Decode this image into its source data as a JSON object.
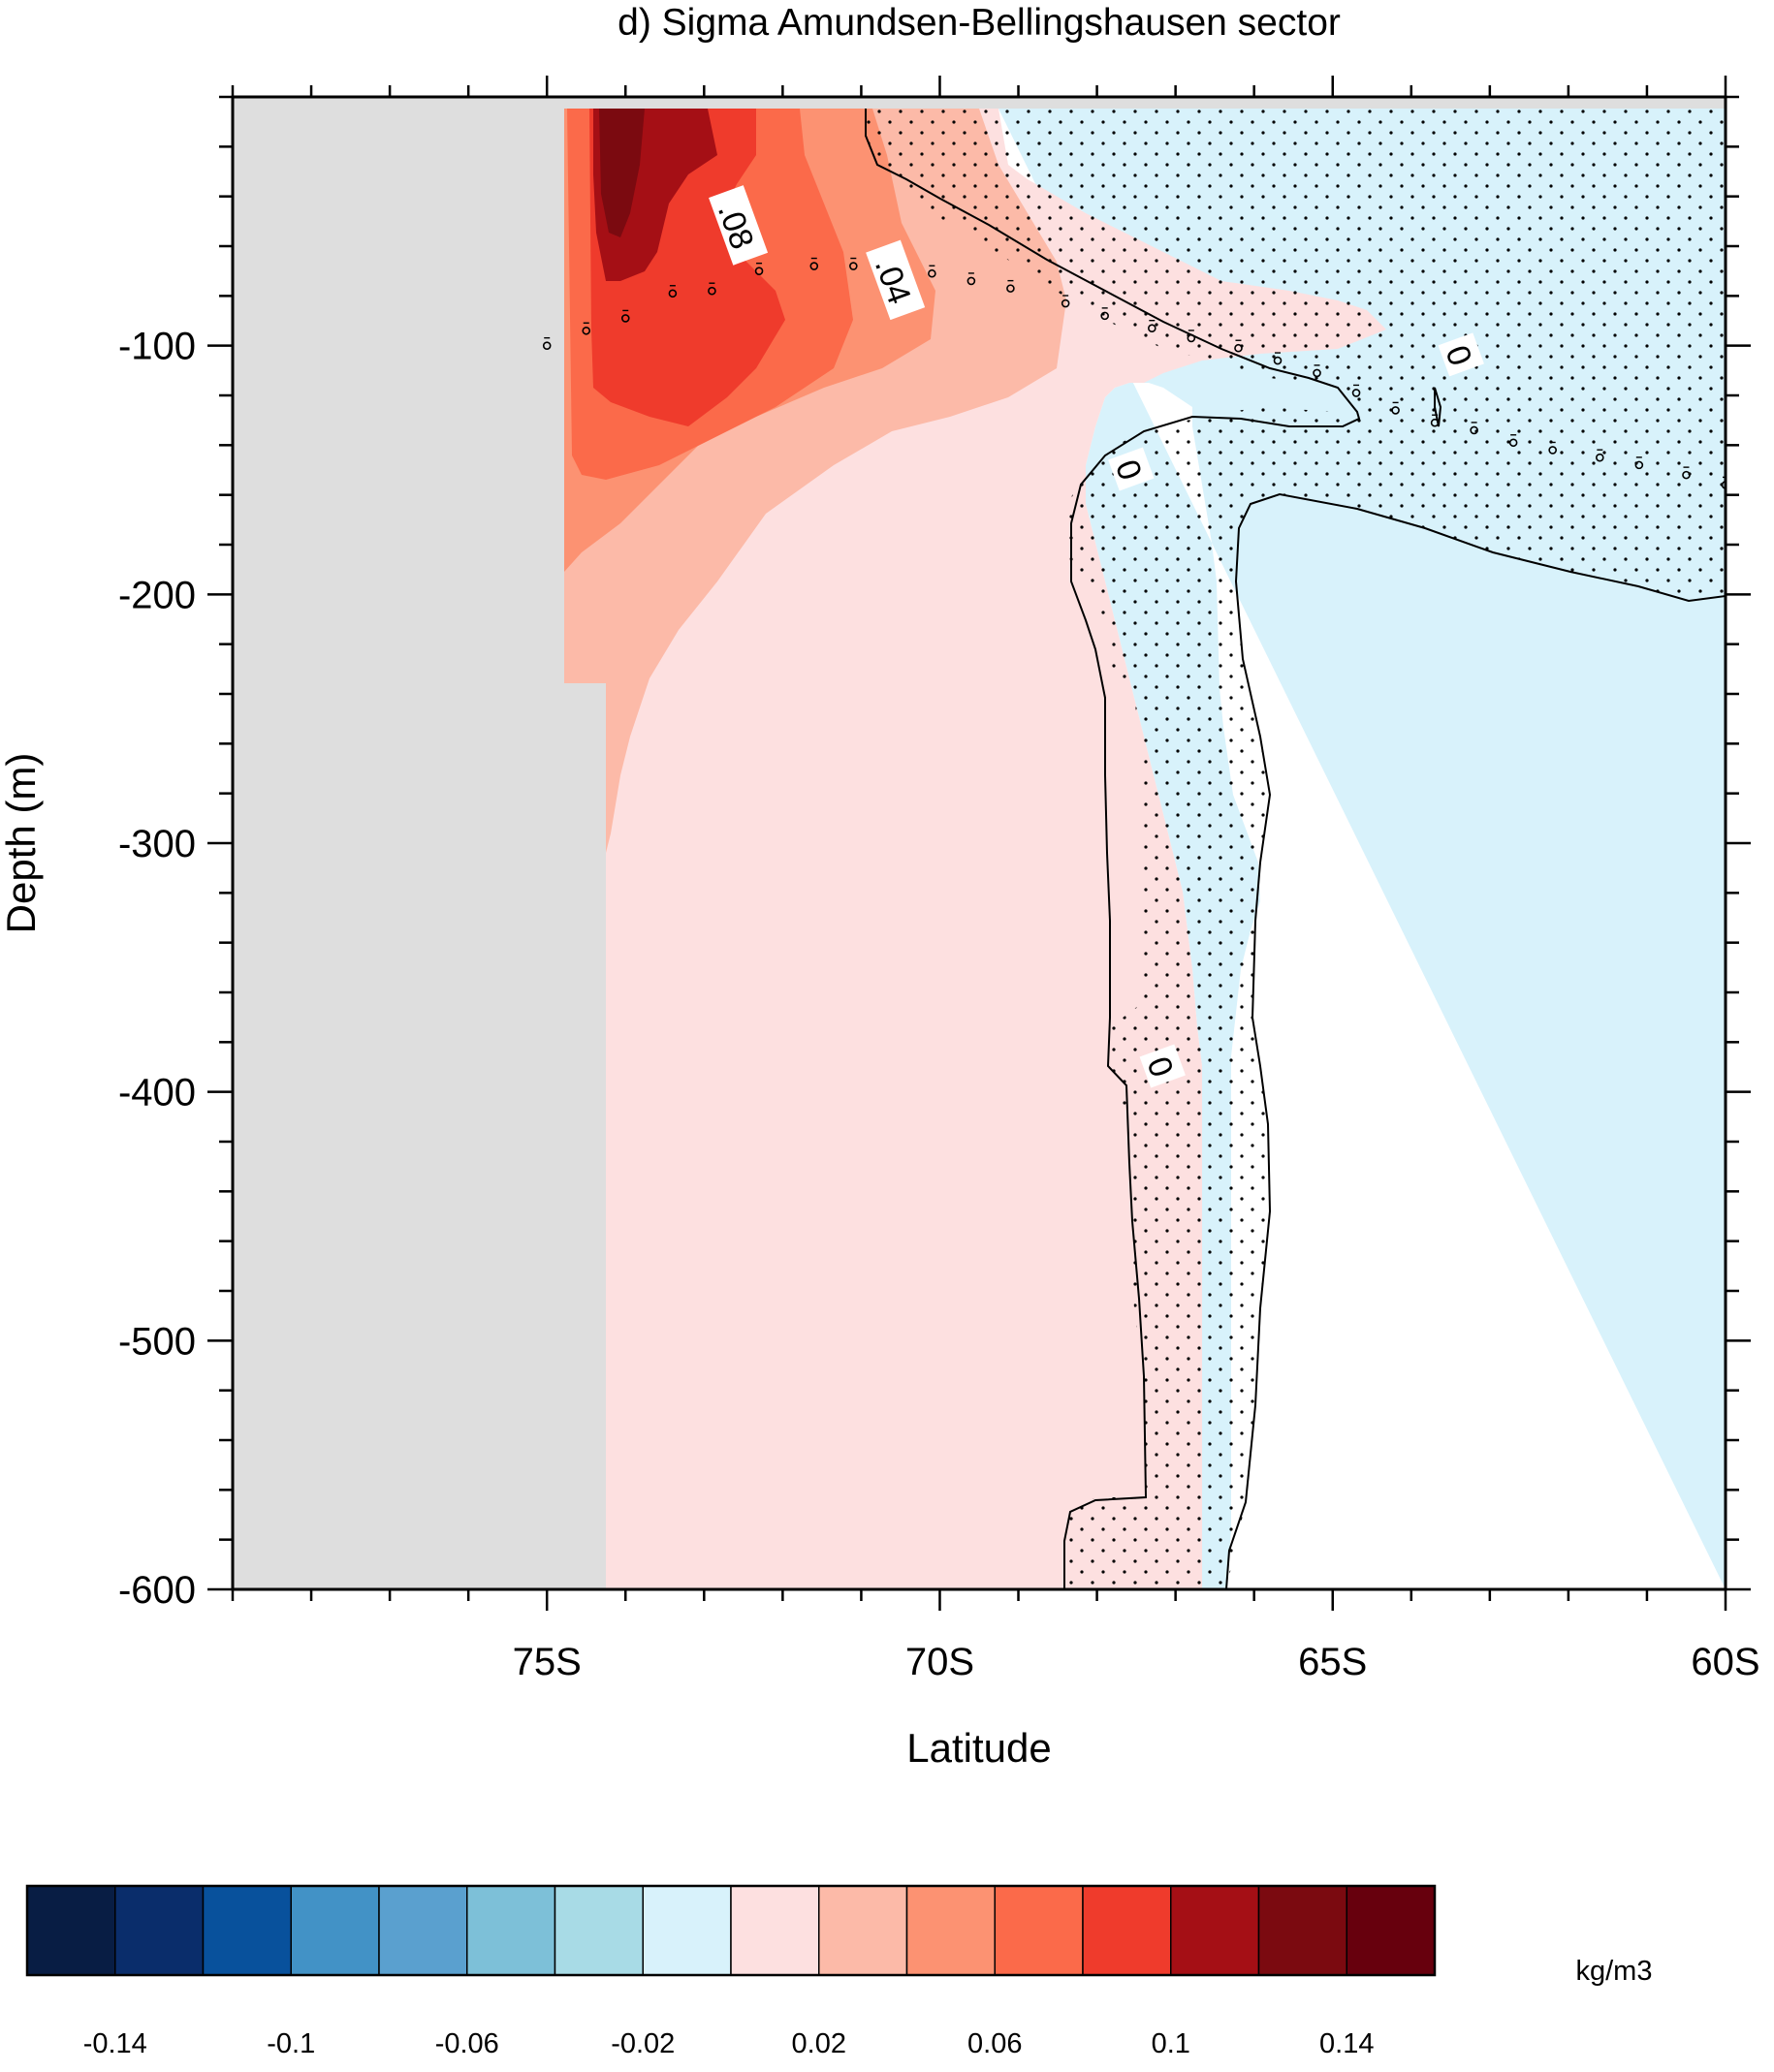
{
  "chart_data": {
    "type": "heatmap",
    "title": "d) Sigma Amundsen-Bellingshausen sector",
    "xlabel": "Latitude",
    "ylabel": "Depth (m)",
    "units": "kg/m3",
    "x_unit": "degrees latitude",
    "xlim": [
      -79,
      -60
    ],
    "ylim": [
      -600,
      0
    ],
    "x_ticks": [
      {
        "value": -75,
        "label": "75S"
      },
      {
        "value": -70,
        "label": "70S"
      },
      {
        "value": -65,
        "label": "65S"
      },
      {
        "value": -60,
        "label": "60S"
      }
    ],
    "y_ticks": [
      {
        "value": -100,
        "label": "-100"
      },
      {
        "value": -200,
        "label": "-200"
      },
      {
        "value": -300,
        "label": "-300"
      },
      {
        "value": -400,
        "label": "-400"
      },
      {
        "value": -500,
        "label": "-500"
      },
      {
        "value": -600,
        "label": "-600"
      }
    ],
    "contour_labels": [
      {
        "text": ".08",
        "lat": -72.6,
        "depth": -52
      },
      {
        "text": ".04",
        "lat": -70.6,
        "depth": -74
      },
      {
        "text": "0",
        "lat": -63.4,
        "depth": -104
      },
      {
        "text": "0",
        "lat": -67.6,
        "depth": -150
      },
      {
        "text": "0",
        "lat": -67.2,
        "depth": -390
      }
    ],
    "colorbar": {
      "colors": [
        "#081d44",
        "#0a2d6b",
        "#08519c",
        "#4292c6",
        "#5aa0cf",
        "#7dc0d8",
        "#a8dbe6",
        "#d8f2fb",
        "#fde0e0",
        "#fcbaa8",
        "#fc9272",
        "#fb6a4a",
        "#ef3b2c",
        "#a50f15",
        "#7b0a10",
        "#67000d"
      ],
      "tick_labels": [
        "-0.14",
        "-0.1",
        "-0.06",
        "-0.02",
        "0.02",
        "0.06",
        "0.1",
        "0.14"
      ]
    },
    "regions": [
      {
        "name": "land-mask",
        "color": "#dedede"
      },
      {
        "name": "level-0.00-0.02",
        "color": "#fde0e0"
      },
      {
        "name": "level-0.02-0.04",
        "color": "#fcbaa8"
      },
      {
        "name": "level-0.04-0.06",
        "color": "#fc9272"
      },
      {
        "name": "level-0.06-0.08",
        "color": "#fb6a4a"
      },
      {
        "name": "level-0.08-0.10",
        "color": "#ef3b2c"
      },
      {
        "name": "level-0.10-0.12",
        "color": "#a50f15"
      },
      {
        "name": "level-0.12-0.14",
        "color": "#7b0a10"
      },
      {
        "name": "level-minus-0.02-0.00",
        "color": "#d8f2fb"
      }
    ],
    "mixed_layer_points": [
      [
        -75.0,
        -100
      ],
      [
        -74.5,
        -94
      ],
      [
        -74.0,
        -89
      ],
      [
        -73.4,
        -79
      ],
      [
        -72.9,
        -78
      ],
      [
        -72.3,
        -70
      ],
      [
        -71.6,
        -68
      ],
      [
        -71.1,
        -68
      ],
      [
        -70.6,
        -70
      ],
      [
        -70.1,
        -71
      ],
      [
        -69.6,
        -74
      ],
      [
        -69.1,
        -77
      ],
      [
        -68.4,
        -83
      ],
      [
        -67.9,
        -88
      ],
      [
        -67.3,
        -93
      ],
      [
        -66.8,
        -97
      ],
      [
        -66.2,
        -101
      ],
      [
        -65.7,
        -106
      ],
      [
        -65.2,
        -111
      ],
      [
        -64.7,
        -119
      ],
      [
        -64.2,
        -126
      ],
      [
        -63.7,
        -131
      ],
      [
        -63.2,
        -134
      ],
      [
        -62.7,
        -139
      ],
      [
        -62.2,
        -142
      ],
      [
        -61.6,
        -145
      ],
      [
        -61.1,
        -148
      ],
      [
        -60.5,
        -152
      ],
      [
        -60.0,
        -156
      ]
    ]
  }
}
